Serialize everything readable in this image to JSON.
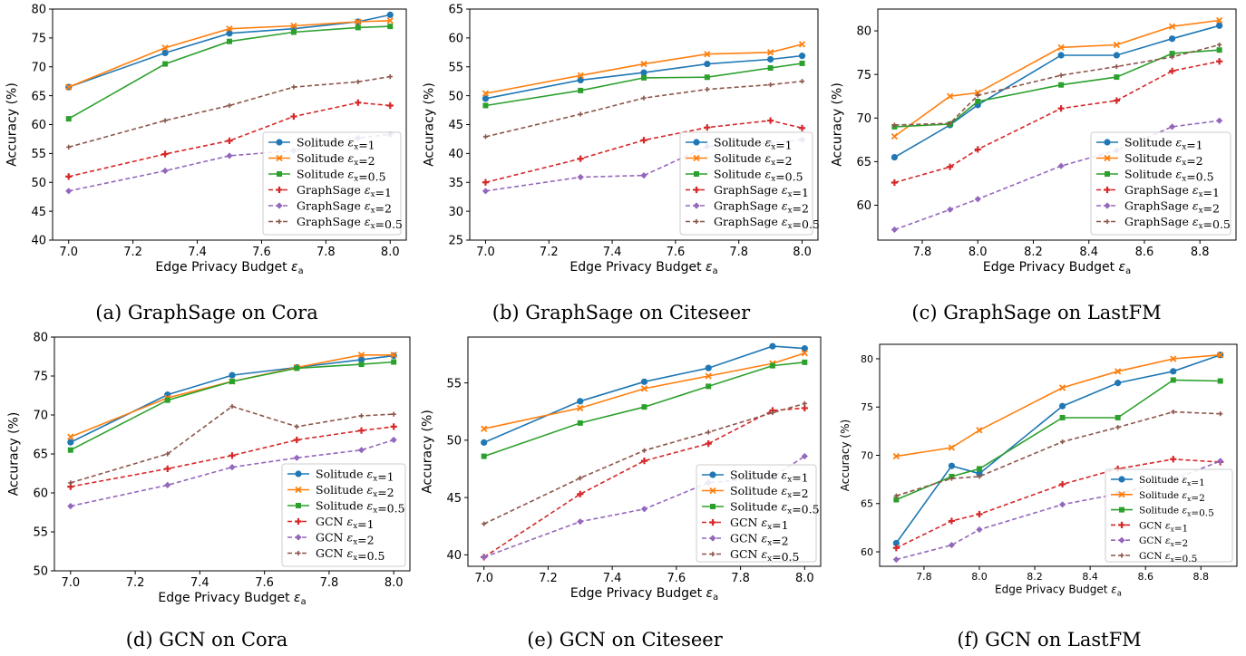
{
  "figure": {
    "panels": [
      {
        "caption": "(a) GraphSage on Cora"
      },
      {
        "caption": "(b) GraphSage on Citeseer"
      },
      {
        "caption": "(c) GraphSage on LastFM"
      },
      {
        "caption": "(d) GCN on Cora"
      },
      {
        "caption": "(e) GCN on Citeseer"
      },
      {
        "caption": "(f) GCN on LastFM"
      }
    ],
    "colors": {
      "blue": "#1f77b4",
      "orange": "#ff7f0e",
      "green": "#2ca02c",
      "red": "#d62728",
      "purple": "#9467bd",
      "brown": "#8c564b"
    }
  },
  "chart_data": [
    {
      "type": "line",
      "xlabel": "Edge Privacy Budget ε_a",
      "ylabel": "Accuracy (%)",
      "xlim": [
        6.95,
        8.05
      ],
      "ylim": [
        40,
        80
      ],
      "xticks": [
        "7.0",
        "7.2",
        "7.4",
        "7.6",
        "7.8",
        "8.0"
      ],
      "yticks": [
        "40",
        "45",
        "50",
        "55",
        "60",
        "65",
        "70",
        "75",
        "80"
      ],
      "legend_position": "center-right",
      "x": [
        7.0,
        7.3,
        7.5,
        7.7,
        7.9,
        8.0
      ],
      "series": [
        {
          "name": "Solitude ε_x=1",
          "values": [
            66.5,
            72.4,
            75.8,
            76.6,
            77.8,
            79.0
          ]
        },
        {
          "name": "Solitude ε_x=2",
          "values": [
            66.5,
            73.3,
            76.6,
            77.1,
            77.8,
            78.0
          ]
        },
        {
          "name": "Solitude ε_x=0.5",
          "values": [
            61.0,
            70.5,
            74.4,
            76.0,
            76.8,
            77.0
          ]
        },
        {
          "name": "GraphSage ε_x=1",
          "values": [
            51.0,
            54.9,
            57.2,
            61.4,
            63.8,
            63.3
          ]
        },
        {
          "name": "GraphSage ε_x=2",
          "values": [
            48.5,
            52.0,
            54.6,
            55.5,
            57.7,
            58.3
          ]
        },
        {
          "name": "GraphSage ε_x=0.5",
          "values": [
            56.1,
            60.7,
            63.3,
            66.5,
            67.4,
            68.3
          ]
        }
      ]
    },
    {
      "type": "line",
      "xlabel": "Edge Privacy Budget ε_a",
      "ylabel": "Accuracy (%)",
      "xlim": [
        6.95,
        8.05
      ],
      "ylim": [
        25,
        65
      ],
      "xticks": [
        "7.0",
        "7.2",
        "7.4",
        "7.6",
        "7.8",
        "8.0"
      ],
      "yticks": [
        "25",
        "30",
        "35",
        "40",
        "45",
        "50",
        "55",
        "60",
        "65"
      ],
      "legend_position": "lower-right",
      "x": [
        7.0,
        7.3,
        7.5,
        7.7,
        7.9,
        8.0
      ],
      "series": [
        {
          "name": "Solitude ε_x=1",
          "values": [
            49.5,
            52.7,
            54.0,
            55.5,
            56.3,
            56.9
          ]
        },
        {
          "name": "Solitude ε_x=2",
          "values": [
            50.4,
            53.5,
            55.5,
            57.2,
            57.5,
            58.9
          ]
        },
        {
          "name": "Solitude ε_x=0.5",
          "values": [
            48.3,
            50.9,
            53.1,
            53.2,
            54.8,
            55.6
          ]
        },
        {
          "name": "GraphSage ε_x=1",
          "values": [
            35.0,
            39.1,
            42.3,
            44.5,
            45.7,
            44.4
          ]
        },
        {
          "name": "GraphSage ε_x=2",
          "values": [
            33.5,
            35.9,
            36.2,
            41.2,
            41.8,
            42.4
          ]
        },
        {
          "name": "GraphSage ε_x=0.5",
          "values": [
            42.9,
            46.8,
            49.6,
            51.1,
            51.9,
            52.5
          ]
        }
      ]
    },
    {
      "type": "line",
      "xlabel": "Edge Privacy Budget ε_a",
      "ylabel": "Accuracy (%)",
      "xlim": [
        7.64,
        8.93
      ],
      "ylim": [
        56,
        82.5
      ],
      "xticks": [
        "7.8",
        "8.0",
        "8.2",
        "8.4",
        "8.6",
        "8.8"
      ],
      "yticks": [
        "60",
        "65",
        "70",
        "75",
        "80"
      ],
      "legend_position": "lower-right",
      "x": [
        7.7,
        7.9,
        8.0,
        8.3,
        8.5,
        8.7,
        8.87
      ],
      "series": [
        {
          "name": "Solitude ε_x=1",
          "values": [
            65.5,
            69.2,
            71.5,
            77.2,
            77.2,
            79.1,
            80.6
          ]
        },
        {
          "name": "Solitude ε_x=2",
          "values": [
            67.9,
            72.5,
            72.9,
            78.1,
            78.4,
            80.5,
            81.2
          ]
        },
        {
          "name": "Solitude ε_x=0.5",
          "values": [
            69.0,
            69.3,
            71.9,
            73.8,
            74.7,
            77.4,
            77.8
          ]
        },
        {
          "name": "GraphSage ε_x=1",
          "values": [
            62.6,
            64.4,
            66.4,
            71.1,
            72.0,
            75.4,
            76.5
          ]
        },
        {
          "name": "GraphSage ε_x=2",
          "values": [
            57.2,
            59.5,
            60.7,
            64.5,
            66.3,
            69.0,
            69.7
          ]
        },
        {
          "name": "GraphSage ε_x=0.5",
          "values": [
            69.2,
            69.4,
            72.6,
            74.9,
            75.9,
            77.0,
            78.4
          ]
        }
      ]
    },
    {
      "type": "line",
      "xlabel": "Edge Privacy Budget ε_a",
      "ylabel": "Accuracy (%)",
      "xlim": [
        6.95,
        8.05
      ],
      "ylim": [
        50,
        80
      ],
      "xticks": [
        "7.0",
        "7.2",
        "7.4",
        "7.6",
        "7.8",
        "8.0"
      ],
      "yticks": [
        "50",
        "55",
        "60",
        "65",
        "70",
        "75",
        "80"
      ],
      "legend_position": "lower-right",
      "x": [
        7.0,
        7.3,
        7.5,
        7.7,
        7.9,
        8.0
      ],
      "series": [
        {
          "name": "Solitude ε_x=1",
          "values": [
            66.5,
            72.6,
            75.1,
            76.1,
            77.1,
            77.6
          ]
        },
        {
          "name": "Solitude ε_x=2",
          "values": [
            67.2,
            72.2,
            74.3,
            76.1,
            77.7,
            77.7
          ]
        },
        {
          "name": "Solitude ε_x=0.5",
          "values": [
            65.5,
            71.9,
            74.3,
            76.0,
            76.5,
            76.8
          ]
        },
        {
          "name": "GCN ε_x=1",
          "values": [
            60.8,
            63.1,
            64.8,
            66.8,
            68.0,
            68.5
          ]
        },
        {
          "name": "GCN ε_x=2",
          "values": [
            58.3,
            61.0,
            63.3,
            64.5,
            65.5,
            66.8
          ]
        },
        {
          "name": "GCN ε_x=0.5",
          "values": [
            61.3,
            65.0,
            71.1,
            68.5,
            69.9,
            70.1
          ]
        }
      ]
    },
    {
      "type": "line",
      "xlabel": "Edge Privacy Budget ε_a",
      "ylabel": "Accuracy (%)",
      "xlim": [
        6.95,
        8.05
      ],
      "ylim": [
        39,
        59
      ],
      "xticks": [
        "7.0",
        "7.2",
        "7.4",
        "7.6",
        "7.8",
        "8.0"
      ],
      "yticks": [
        "40",
        "45",
        "50",
        "55"
      ],
      "legend_position": "lower-right",
      "x": [
        7.0,
        7.3,
        7.5,
        7.7,
        7.9,
        8.0
      ],
      "series": [
        {
          "name": "Solitude ε_x=1",
          "values": [
            49.8,
            53.4,
            55.1,
            56.3,
            58.2,
            58.0
          ]
        },
        {
          "name": "Solitude ε_x=2",
          "values": [
            51.0,
            52.8,
            54.5,
            55.6,
            56.7,
            57.6
          ]
        },
        {
          "name": "Solitude ε_x=0.5",
          "values": [
            48.6,
            51.5,
            52.9,
            54.7,
            56.5,
            56.8
          ]
        },
        {
          "name": "GCN ε_x=1",
          "values": [
            39.8,
            45.3,
            48.2,
            49.7,
            52.6,
            52.8
          ]
        },
        {
          "name": "GCN ε_x=2",
          "values": [
            39.8,
            42.9,
            44.0,
            46.3,
            46.8,
            48.6
          ]
        },
        {
          "name": "GCN ε_x=0.5",
          "values": [
            42.7,
            46.7,
            49.1,
            50.7,
            52.4,
            53.2
          ]
        }
      ]
    },
    {
      "type": "line",
      "xlabel": "Edge Privacy Budget ε_a",
      "ylabel": "Accuracy (%)",
      "xlim": [
        7.64,
        8.93
      ],
      "ylim": [
        58.5,
        81.5
      ],
      "xticks": [
        "7.8",
        "8.0",
        "8.2",
        "8.4",
        "8.6",
        "8.8"
      ],
      "yticks": [
        "60",
        "65",
        "70",
        "75",
        "80"
      ],
      "legend_position": "lower-right",
      "x": [
        7.7,
        7.9,
        8.0,
        8.3,
        8.5,
        8.7,
        8.87
      ],
      "series": [
        {
          "name": "Solitude ε_x=1",
          "values": [
            60.9,
            68.9,
            68.1,
            75.1,
            77.5,
            78.7,
            80.4
          ]
        },
        {
          "name": "Solitude ε_x=2",
          "values": [
            69.9,
            70.8,
            72.6,
            77.0,
            78.7,
            80.0,
            80.4
          ]
        },
        {
          "name": "Solitude ε_x=0.5",
          "values": [
            65.4,
            67.8,
            68.6,
            73.9,
            73.9,
            77.8,
            77.7
          ]
        },
        {
          "name": "GCN ε_x=1",
          "values": [
            60.4,
            63.2,
            63.9,
            67.0,
            68.6,
            69.6,
            69.3
          ]
        },
        {
          "name": "GCN ε_x=2",
          "values": [
            59.2,
            60.7,
            62.3,
            64.9,
            66.0,
            67.5,
            69.4
          ]
        },
        {
          "name": "GCN ε_x=0.5",
          "values": [
            65.8,
            67.6,
            67.8,
            71.4,
            72.9,
            74.5,
            74.3
          ]
        }
      ]
    }
  ]
}
